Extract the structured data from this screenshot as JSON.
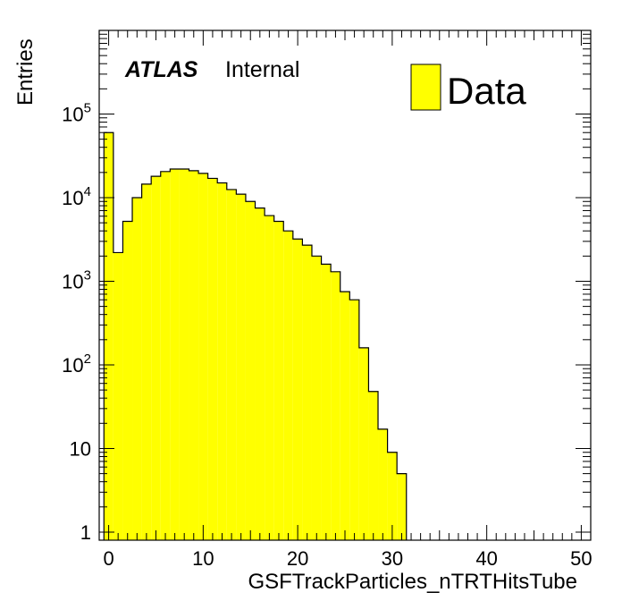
{
  "chart_data": {
    "type": "bar",
    "histogram": true,
    "xlabel": "GSFTrackParticles_nTRTHitsTube",
    "ylabel": "Entries",
    "xlim": [
      -1,
      51
    ],
    "ylim": [
      0.8,
      1000000
    ],
    "yscale": "log",
    "fill_color": "#ffff00",
    "line_color": "#000000",
    "bin_width": 1,
    "bin_low_edges": [
      -0.5,
      0.5,
      1.5,
      2.5,
      3.5,
      4.5,
      5.5,
      6.5,
      7.5,
      8.5,
      9.5,
      10.5,
      11.5,
      12.5,
      13.5,
      14.5,
      15.5,
      16.5,
      17.5,
      18.5,
      19.5,
      20.5,
      21.5,
      22.5,
      23.5,
      24.5,
      25.5,
      26.5,
      27.5,
      28.5,
      29.5,
      30.5
    ],
    "series": [
      {
        "name": "Data",
        "values": [
          60000,
          2200,
          5200,
          10000,
          14500,
          18000,
          20500,
          22000,
          22000,
          21000,
          19500,
          17000,
          15000,
          12500,
          11000,
          9000,
          7500,
          6100,
          5200,
          4000,
          3200,
          2700,
          2000,
          1600,
          1300,
          750,
          600,
          160,
          48,
          17,
          9,
          5
        ]
      }
    ],
    "x_ticks": [
      "0",
      "10",
      "20",
      "30",
      "40",
      "50"
    ],
    "y_ticks": [
      {
        "value": 1,
        "base": "1",
        "exp": ""
      },
      {
        "value": 10,
        "base": "10",
        "exp": ""
      },
      {
        "value": 100,
        "base": "10",
        "exp": "2"
      },
      {
        "value": 1000,
        "base": "10",
        "exp": "3"
      },
      {
        "value": 10000,
        "base": "10",
        "exp": "4"
      },
      {
        "value": 100000,
        "base": "10",
        "exp": "5"
      }
    ],
    "annotations": {
      "experiment": "ATLAS",
      "status": "Internal"
    },
    "legend": {
      "position": "top-right",
      "entries": [
        "Data"
      ]
    }
  }
}
